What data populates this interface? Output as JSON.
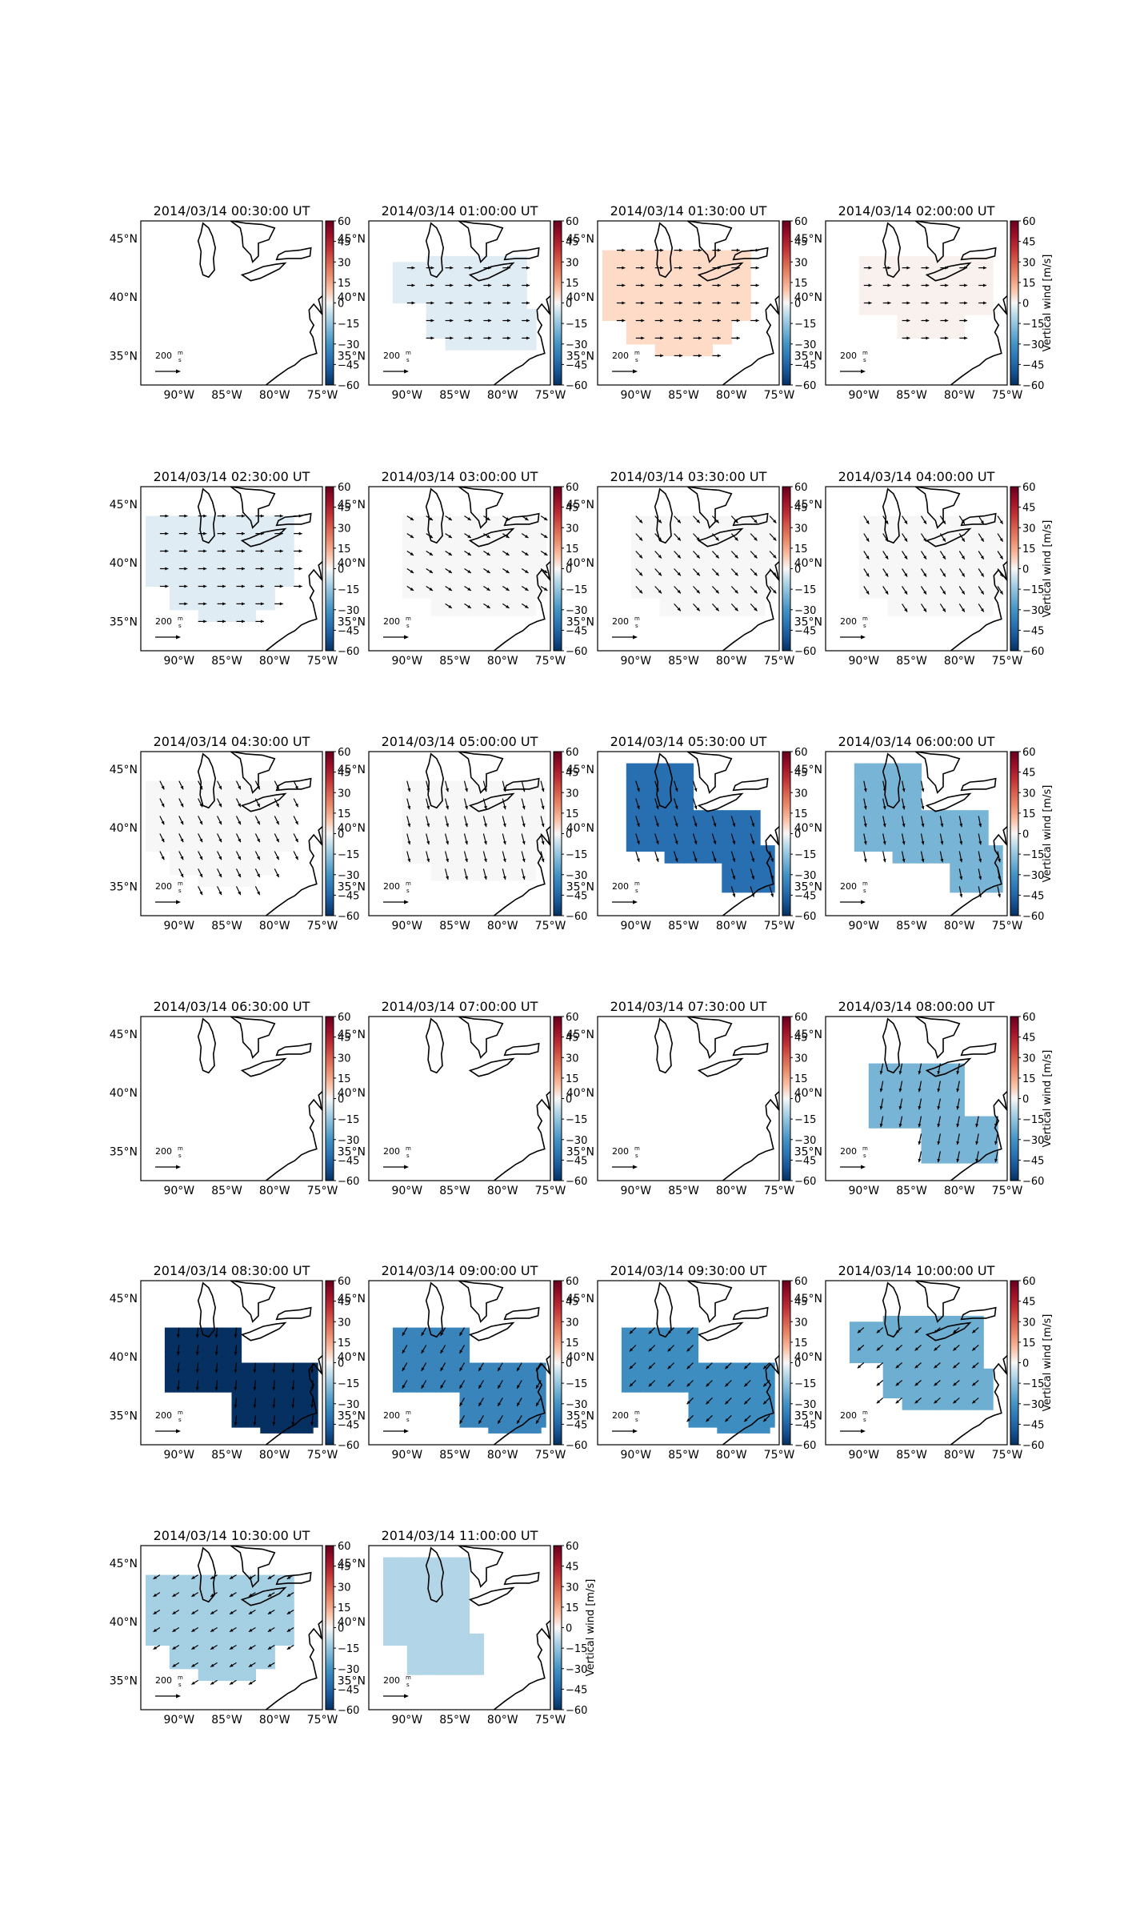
{
  "figure": {
    "colorbar_label": "Vertical wind [m/s]",
    "scale_label": "200",
    "scale_unit_top": "m",
    "scale_unit_bottom": "s"
  },
  "axes": {
    "x_ticks": [
      "90°W",
      "85°W",
      "80°W",
      "75°W"
    ],
    "y_ticks": [
      "45°N",
      "40°N",
      "35°N"
    ],
    "x_tick_values": [
      -90,
      -85,
      -80,
      -75
    ],
    "y_tick_values": [
      45,
      40,
      35
    ],
    "lon_range": [
      -94,
      -75
    ],
    "lat_range": [
      32.5,
      46.5
    ]
  },
  "colorbar": {
    "ticks": [
      "60",
      "45",
      "30",
      "15",
      "0",
      "−15",
      "−30",
      "−45",
      "−60"
    ],
    "tick_values": [
      60,
      45,
      30,
      15,
      0,
      -15,
      -30,
      -45,
      -60
    ],
    "range": [
      -60,
      60
    ],
    "colormap": "RdBu_r"
  },
  "chart_data": {
    "type": "heatmap",
    "description_units": "vertical wind in m/s, horizontal wind vectors with 200 m/s reference",
    "panels": [
      {
        "title": "2014/03/14 00:30:00 UT",
        "value": null,
        "dir": [
          1,
          0
        ],
        "mag": 0,
        "region": "none"
      },
      {
        "title": "2014/03/14 01:00:00 UT",
        "value": -3,
        "dir": [
          1,
          0
        ],
        "mag": 0.7,
        "region": "east_wide"
      },
      {
        "title": "2014/03/14 01:30:00 UT",
        "value": 5,
        "dir": [
          1,
          0
        ],
        "mag": 0.75,
        "region": "west_wide"
      },
      {
        "title": "2014/03/14 02:00:00 UT",
        "value": 1,
        "dir": [
          1,
          0
        ],
        "mag": 0.7,
        "region": "north_mid"
      },
      {
        "title": "2014/03/14 02:30:00 UT",
        "value": -3,
        "dir": [
          1,
          0
        ],
        "mag": 0.75,
        "region": "west_wide"
      },
      {
        "title": "2014/03/14 03:00:00 UT",
        "value": 0,
        "dir": [
          0.85,
          0.55
        ],
        "mag": 0.7,
        "region": "mid"
      },
      {
        "title": "2014/03/14 03:30:00 UT",
        "value": 0,
        "dir": [
          0.7,
          0.75
        ],
        "mag": 0.85,
        "region": "mid"
      },
      {
        "title": "2014/03/14 04:00:00 UT",
        "value": 0,
        "dir": [
          0.55,
          0.85
        ],
        "mag": 0.85,
        "region": "mid"
      },
      {
        "title": "2014/03/14 04:30:00 UT",
        "value": 0,
        "dir": [
          0.45,
          0.9
        ],
        "mag": 0.85,
        "region": "west_wide"
      },
      {
        "title": "2014/03/14 05:00:00 UT",
        "value": 0,
        "dir": [
          0.25,
          0.97
        ],
        "mag": 1.0,
        "region": "mid"
      },
      {
        "title": "2014/03/14 05:30:00 UT",
        "value": -42,
        "dir": [
          0.3,
          0.95
        ],
        "mag": 1.0,
        "region": "blob"
      },
      {
        "title": "2014/03/14 06:00:00 UT",
        "value": -20,
        "dir": [
          0.2,
          0.98
        ],
        "mag": 1.0,
        "region": "blob"
      },
      {
        "title": "2014/03/14 06:30:00 UT",
        "value": null,
        "dir": [
          1,
          0
        ],
        "mag": 0,
        "region": "none"
      },
      {
        "title": "2014/03/14 07:00:00 UT",
        "value": null,
        "dir": [
          1,
          0
        ],
        "mag": 0,
        "region": "none"
      },
      {
        "title": "2014/03/14 07:30:00 UT",
        "value": null,
        "dir": [
          1,
          0
        ],
        "mag": 0,
        "region": "none"
      },
      {
        "title": "2014/03/14 08:00:00 UT",
        "value": -20,
        "dir": [
          -0.2,
          0.98
        ],
        "mag": 1.0,
        "region": "lower_blob"
      },
      {
        "title": "2014/03/14 08:30:00 UT",
        "value": -60,
        "dir": [
          -0.1,
          1
        ],
        "mag": 0.9,
        "region": "south_blob"
      },
      {
        "title": "2014/03/14 09:00:00 UT",
        "value": -35,
        "dir": [
          -0.5,
          0.87
        ],
        "mag": 0.85,
        "region": "south_blob"
      },
      {
        "title": "2014/03/14 09:30:00 UT",
        "value": -32,
        "dir": [
          -0.7,
          0.7
        ],
        "mag": 0.8,
        "region": "south_blob"
      },
      {
        "title": "2014/03/14 10:00:00 UT",
        "value": -22,
        "dir": [
          -0.75,
          0.65
        ],
        "mag": 0.75,
        "region": "east_wide"
      },
      {
        "title": "2014/03/14 10:30:00 UT",
        "value": -12,
        "dir": [
          -0.85,
          0.52
        ],
        "mag": 0.7,
        "region": "west_wide"
      },
      {
        "title": "2014/03/14 11:00:00 UT",
        "value": -10,
        "dir": [
          -0.8,
          0.6
        ],
        "mag": 0.0,
        "region": "west_small"
      }
    ]
  }
}
